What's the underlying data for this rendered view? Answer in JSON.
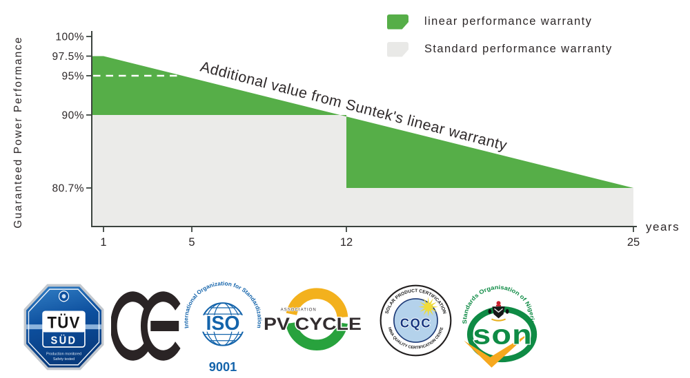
{
  "chart_data": {
    "type": "area",
    "title": "",
    "ylabel": "Guaranteed Power Performance",
    "xlabel": "years",
    "annotation": "Additional value from Suntek's linear warranty",
    "x_range": [
      1,
      25
    ],
    "y_range_shown": [
      80.7,
      100
    ],
    "grid": false,
    "legend_position": "top-right",
    "legend": [
      {
        "label": "linear performance warranty",
        "color": "#56ae48"
      },
      {
        "label": "Standard performance warranty",
        "color": "#e9e9e7"
      }
    ],
    "y_ticks": [
      {
        "label": "100%",
        "value": 100
      },
      {
        "label": "97.5%",
        "value": 97.5
      },
      {
        "label": "95%",
        "value": 95
      },
      {
        "label": "90%",
        "value": 90
      },
      {
        "label": "80.7%",
        "value": 80.7
      }
    ],
    "x_ticks": [
      {
        "label": "1",
        "year": 1
      },
      {
        "label": "5",
        "year": 5
      },
      {
        "label": "12",
        "year": 12
      },
      {
        "label": "25",
        "year": 25
      }
    ],
    "series": [
      {
        "name": "linear performance warranty",
        "color": "#56ae48",
        "points": [
          {
            "year": 1,
            "value": 97.5
          },
          {
            "year": 25,
            "value": 80.7
          }
        ]
      },
      {
        "name": "Standard performance warranty",
        "color": "#ebebe9",
        "points": [
          {
            "year": 1,
            "value": 90
          },
          {
            "year": 12,
            "value": 90
          },
          {
            "year": 12,
            "value": 80.7
          },
          {
            "year": 25,
            "value": 80.7
          }
        ]
      }
    ],
    "guide_line": {
      "value": 95,
      "color": "#ffffff",
      "style": "dashed"
    }
  },
  "certifications": [
    {
      "name": "TÜV SÜD",
      "label": "TÜV",
      "sublabel": "SÜD",
      "caption_line1": "Production monitored",
      "caption_line2": "Safety tested"
    },
    {
      "name": "CE"
    },
    {
      "name": "ISO 9001",
      "ring_text": "International Organization for Standardization",
      "label": "ISO",
      "number": "9001"
    },
    {
      "name": "PV CYCLE",
      "association": "ASSOCIATION",
      "label": "PV CYCLE"
    },
    {
      "name": "CQC",
      "ring_text_top": "SOLAR PRODUCT CERTIFICATION",
      "ring_text_bottom": "CHINA QUALITY CERTIFICATION CENTER",
      "label": "CQC"
    },
    {
      "name": "SON",
      "ring_text": "Standards Organisation of Nigeria",
      "label": "son"
    }
  ],
  "colors": {
    "chart_green": "#56ae48",
    "chart_gray": "#ebebe9",
    "axis": "#3b433e",
    "text": "#2c2728",
    "iso_blue": "#1464ab",
    "tuv_blue_dark": "#083a7c",
    "pv_yellow": "#f3b11d",
    "pv_green": "#28a23d",
    "cqc_navy": "#16357f",
    "son_green": "#0f8b45",
    "son_yellow": "#f6a81f"
  }
}
